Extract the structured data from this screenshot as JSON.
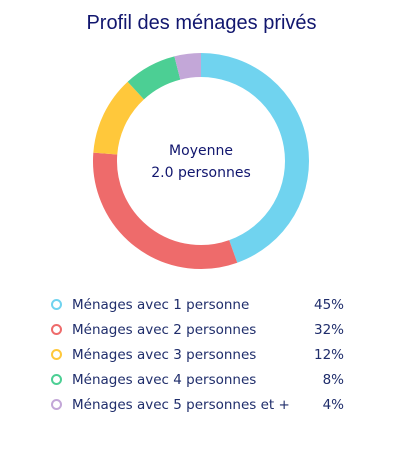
{
  "title": "Profil des ménages privés",
  "center": {
    "line1": "Moyenne",
    "line2": "2.0 personnes"
  },
  "chart_data": {
    "type": "pie",
    "style": "donut",
    "title": "Profil des ménages privés",
    "categories": [
      "Ménages avec 1 personne",
      "Ménages avec 2 personnes",
      "Ménages avec 3 personnes",
      "Ménages avec 4 personnes",
      "Ménages avec 5 personnes et +"
    ],
    "values": [
      45,
      32,
      12,
      8,
      4
    ],
    "value_labels": [
      "45%",
      "32%",
      "12%",
      "8%",
      "4%"
    ],
    "colors": [
      "#70d3ef",
      "#ee6b6b",
      "#ffc83b",
      "#4ccf94",
      "#c3a7d8"
    ],
    "legend_position": "bottom"
  }
}
